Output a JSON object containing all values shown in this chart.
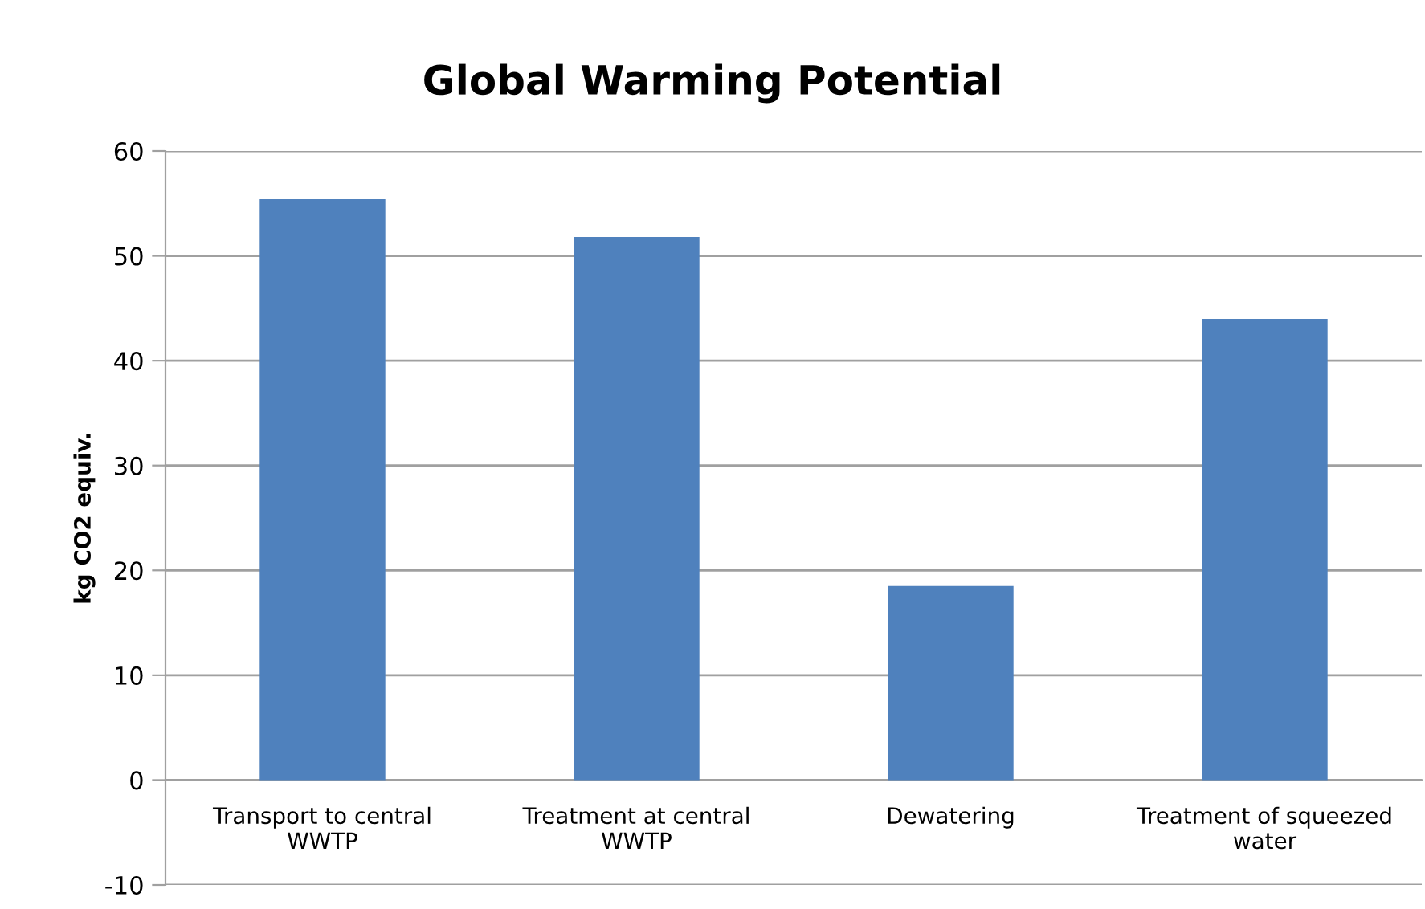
{
  "chart_data": {
    "type": "bar",
    "title": "Global Warming Potential",
    "ylabel": "kg CO2 equiv.",
    "categories": [
      "Transport to central WWTP",
      "Treatment at central WWTP",
      "Dewatering",
      "Treatment of squeezed water"
    ],
    "values": [
      55.4,
      51.8,
      18.5,
      44.0
    ],
    "color": "#4f81bd",
    "ylim": [
      -10,
      60
    ],
    "yticks": [
      -10,
      0,
      10,
      20,
      30,
      40,
      50,
      60
    ],
    "grid": "y",
    "legend": false
  }
}
